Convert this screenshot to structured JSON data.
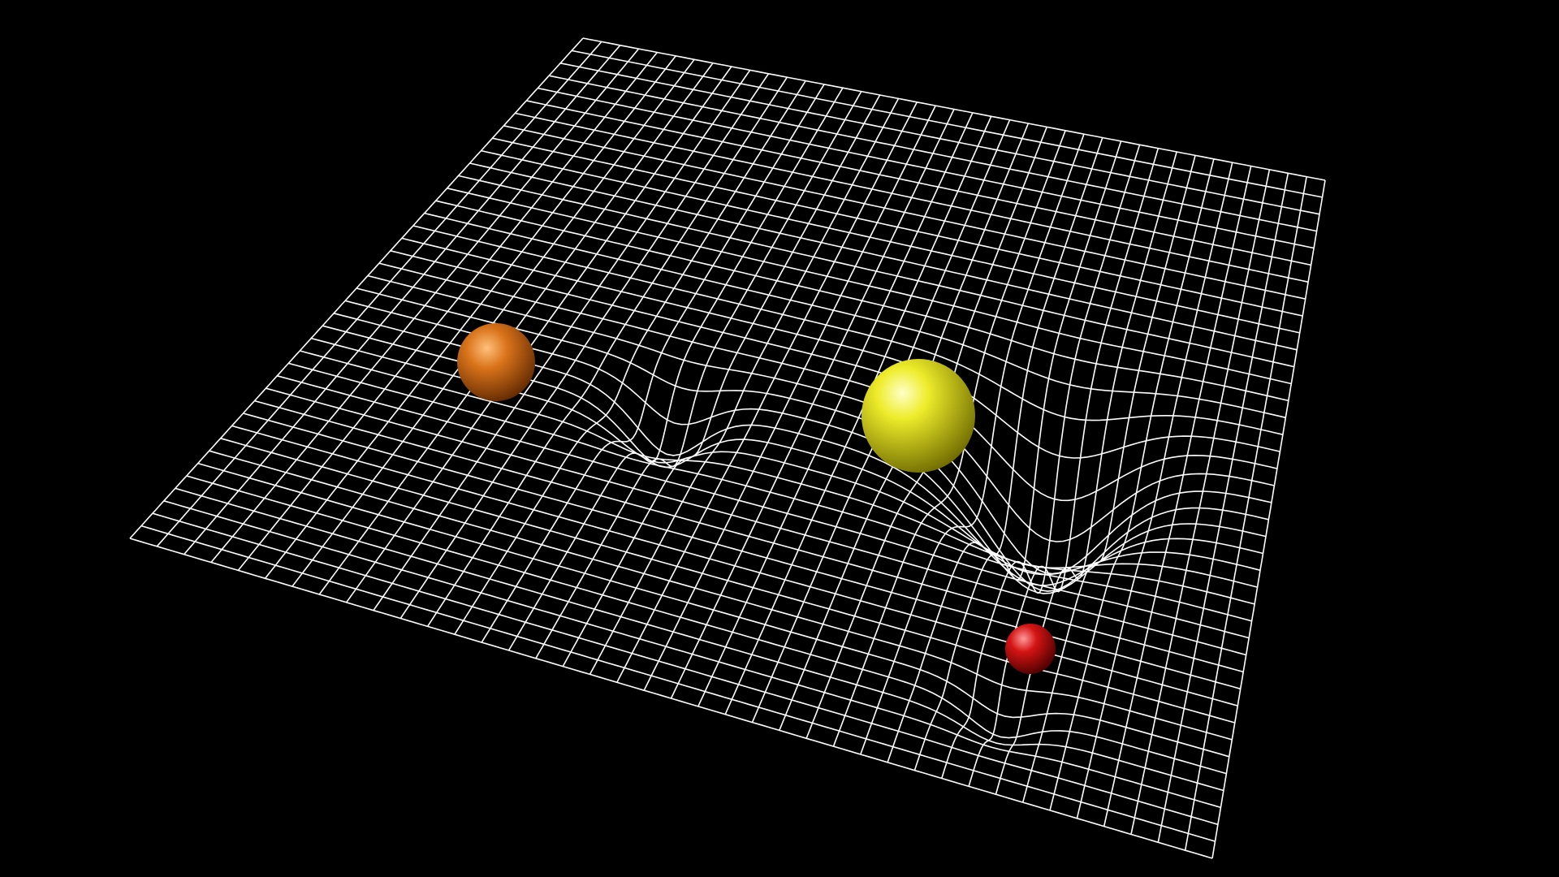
{
  "scene": {
    "background_color": "#000000",
    "grid_color": "#ffffff",
    "grid_lines_per_direction": 41,
    "objects": [
      {
        "name": "orange-sphere",
        "color": "#d9731a",
        "relative_mass": 0.6
      },
      {
        "name": "yellow-sphere",
        "color": "#e6e41f",
        "relative_mass": 1.0
      },
      {
        "name": "red-sphere",
        "color": "#d51414",
        "relative_mass": 0.25
      }
    ]
  }
}
